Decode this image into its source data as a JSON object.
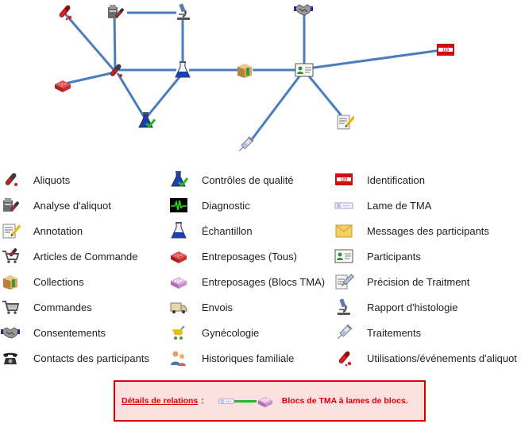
{
  "legend": {
    "col1": [
      {
        "label": "Aliquots",
        "icon": "aliquot-tube-icon"
      },
      {
        "label": "Analyse d'aliquot",
        "icon": "aliquot-analysis-icon"
      },
      {
        "label": "Annotation",
        "icon": "annotation-note-icon"
      },
      {
        "label": "Articles de Commande",
        "icon": "order-item-cart-icon"
      },
      {
        "label": "Collections",
        "icon": "collection-box-icon"
      },
      {
        "label": "Commandes",
        "icon": "shopping-cart-icon"
      },
      {
        "label": "Consentements",
        "icon": "handshake-icon"
      },
      {
        "label": "Contacts des participants",
        "icon": "telephone-icon"
      }
    ],
    "col2": [
      {
        "label": "Contrôles de qualité",
        "icon": "quality-flask-check-icon"
      },
      {
        "label": "Diagnostic",
        "icon": "ecg-monitor-icon"
      },
      {
        "label": "Échantillon",
        "icon": "sample-flask-icon"
      },
      {
        "label": "Entreposages (Tous)",
        "icon": "storage-box-icon"
      },
      {
        "label": "Entreposages (Blocs TMA)",
        "icon": "tma-block-icon"
      },
      {
        "label": "Envois",
        "icon": "delivery-truck-icon"
      },
      {
        "label": "Gynécologie",
        "icon": "gynecology-stroller-icon"
      },
      {
        "label": "Historiques familiale",
        "icon": "family-history-icon"
      }
    ],
    "col3": [
      {
        "label": "Identification",
        "icon": "identification-badge-icon"
      },
      {
        "label": "Lame de TMA",
        "icon": "tma-slide-icon"
      },
      {
        "label": "Messages des participants",
        "icon": "message-envelope-icon"
      },
      {
        "label": "Participants",
        "icon": "participant-card-icon"
      },
      {
        "label": "Précision de Traitment",
        "icon": "treatment-detail-icon"
      },
      {
        "label": "Rapport d'histologie",
        "icon": "microscope-icon"
      },
      {
        "label": "Traitements",
        "icon": "syringe-icon"
      },
      {
        "label": "Utilisations/événements d'aliquot",
        "icon": "aliquot-use-icon"
      }
    ]
  },
  "details": {
    "label": "Détails de relations",
    "colon": ":",
    "text": "Blocs de TMA à lames de blocs.",
    "link_color": "#22bb22"
  },
  "colors": {
    "edge": "#4a7cc0",
    "accent": "#e00000",
    "border_bg": "#fde0e0"
  }
}
